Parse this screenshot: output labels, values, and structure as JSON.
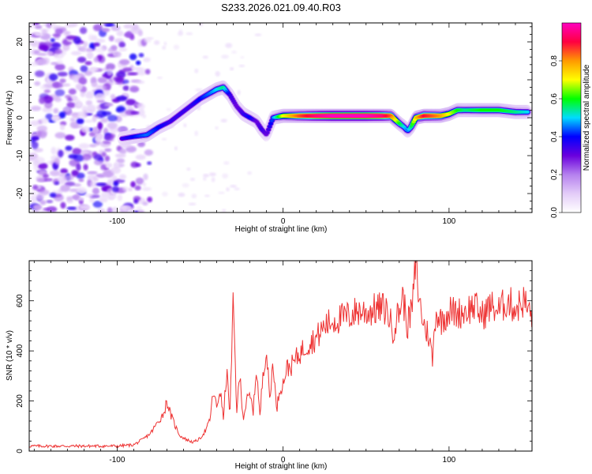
{
  "title": "S233.2026.021.09.40.R03",
  "chart_data": [
    {
      "type": "heatmap",
      "title": "S233.2026.021.09.40.R03",
      "xlabel": "Height of straight line (km)",
      "ylabel": "Frequency (Hz)",
      "xlim": [
        -153,
        150
      ],
      "ylim": [
        -25,
        25
      ],
      "xticks": [
        -100,
        0,
        100
      ],
      "yticks": [
        -20,
        -10,
        0,
        10,
        20
      ],
      "colorbar": {
        "label": "Normalized spectral amplitude",
        "range": [
          0,
          1
        ],
        "ticks": [
          0.0,
          0.2,
          0.4,
          0.6,
          0.8
        ],
        "tick_labels": [
          "0.0",
          "0.2",
          "0.4",
          "0.6",
          "0.8"
        ],
        "colormap": [
          "#ffffff",
          "#e3ccf8",
          "#b580ee",
          "#6a00dd",
          "#0000ff",
          "#00dcff",
          "#00ff00",
          "#ffff00",
          "#ff9a00",
          "#ff0040",
          "#ff00c0"
        ]
      },
      "ridge": {
        "x": [
          -97,
          -90,
          -82,
          -75,
          -68,
          -62,
          -56,
          -50,
          -44,
          -40,
          -36,
          -32,
          -28,
          -24,
          -20,
          -16,
          -13,
          -10,
          -6,
          0,
          10,
          20,
          30,
          40,
          50,
          60,
          65,
          70,
          73,
          75,
          77,
          80,
          85,
          90,
          95,
          100,
          105,
          110,
          120,
          130,
          140,
          148
        ],
        "y": [
          -5.5,
          -5,
          -4.5,
          -2.5,
          -1,
          1,
          3,
          5,
          6.5,
          7.5,
          8,
          6,
          3,
          1,
          0,
          -1,
          -3,
          -4.5,
          0,
          0.5,
          0.5,
          0.5,
          0.5,
          0.5,
          0.5,
          0.5,
          0.5,
          -1.5,
          -2.5,
          -3.5,
          -2.5,
          0,
          0.5,
          0.5,
          0.5,
          1,
          2,
          2,
          2,
          2,
          1.5,
          1.5
        ],
        "amplitude": [
          0.35,
          0.4,
          0.45,
          0.4,
          0.35,
          0.35,
          0.35,
          0.4,
          0.45,
          0.5,
          0.55,
          0.35,
          0.3,
          0.35,
          0.4,
          0.3,
          0.35,
          0.3,
          0.45,
          0.7,
          0.85,
          0.95,
          1.0,
          1.0,
          1.0,
          0.95,
          0.85,
          0.6,
          0.5,
          0.45,
          0.55,
          0.75,
          0.9,
          0.85,
          0.8,
          0.7,
          0.6,
          0.55,
          0.6,
          0.6,
          0.55,
          0.5
        ]
      }
    },
    {
      "type": "line",
      "xlabel": "Height of straight line (km)",
      "ylabel": "SNR (10 * v/v)",
      "xlim": [
        -153,
        150
      ],
      "ylim": [
        0,
        760
      ],
      "xticks": [
        -100,
        0,
        100
      ],
      "yticks": [
        0,
        200,
        400,
        600
      ],
      "series": [
        {
          "name": "SNR",
          "color": "#ee3333",
          "x": [
            -153,
            -140,
            -120,
            -100,
            -90,
            -85,
            -80,
            -76,
            -72,
            -70,
            -68,
            -65,
            -62,
            -58,
            -54,
            -50,
            -46,
            -44,
            -42,
            -40,
            -38,
            -36,
            -34,
            -32,
            -30,
            -28,
            -26,
            -24,
            -22,
            -20,
            -18,
            -16,
            -14,
            -12,
            -10,
            -8,
            -6,
            -4,
            -2,
            0,
            2,
            5,
            10,
            15,
            20,
            25,
            30,
            35,
            40,
            45,
            50,
            55,
            60,
            63,
            66,
            70,
            72,
            75,
            78,
            80,
            82,
            85,
            88,
            90,
            92,
            95,
            100,
            105,
            110,
            115,
            120,
            125,
            130,
            135,
            140,
            145,
            148,
            150
          ],
          "y": [
            20,
            20,
            20,
            20,
            25,
            45,
            70,
            110,
            150,
            200,
            150,
            100,
            60,
            45,
            35,
            50,
            90,
            130,
            240,
            170,
            250,
            130,
            320,
            150,
            600,
            160,
            300,
            130,
            200,
            220,
            160,
            340,
            130,
            330,
            400,
            200,
            370,
            160,
            250,
            270,
            330,
            340,
            390,
            430,
            450,
            500,
            520,
            530,
            540,
            560,
            555,
            565,
            570,
            560,
            480,
            560,
            620,
            500,
            580,
            760,
            600,
            500,
            460,
            360,
            560,
            520,
            560,
            550,
            560,
            580,
            540,
            580,
            560,
            600,
            570,
            600,
            560,
            540
          ]
        }
      ]
    }
  ]
}
